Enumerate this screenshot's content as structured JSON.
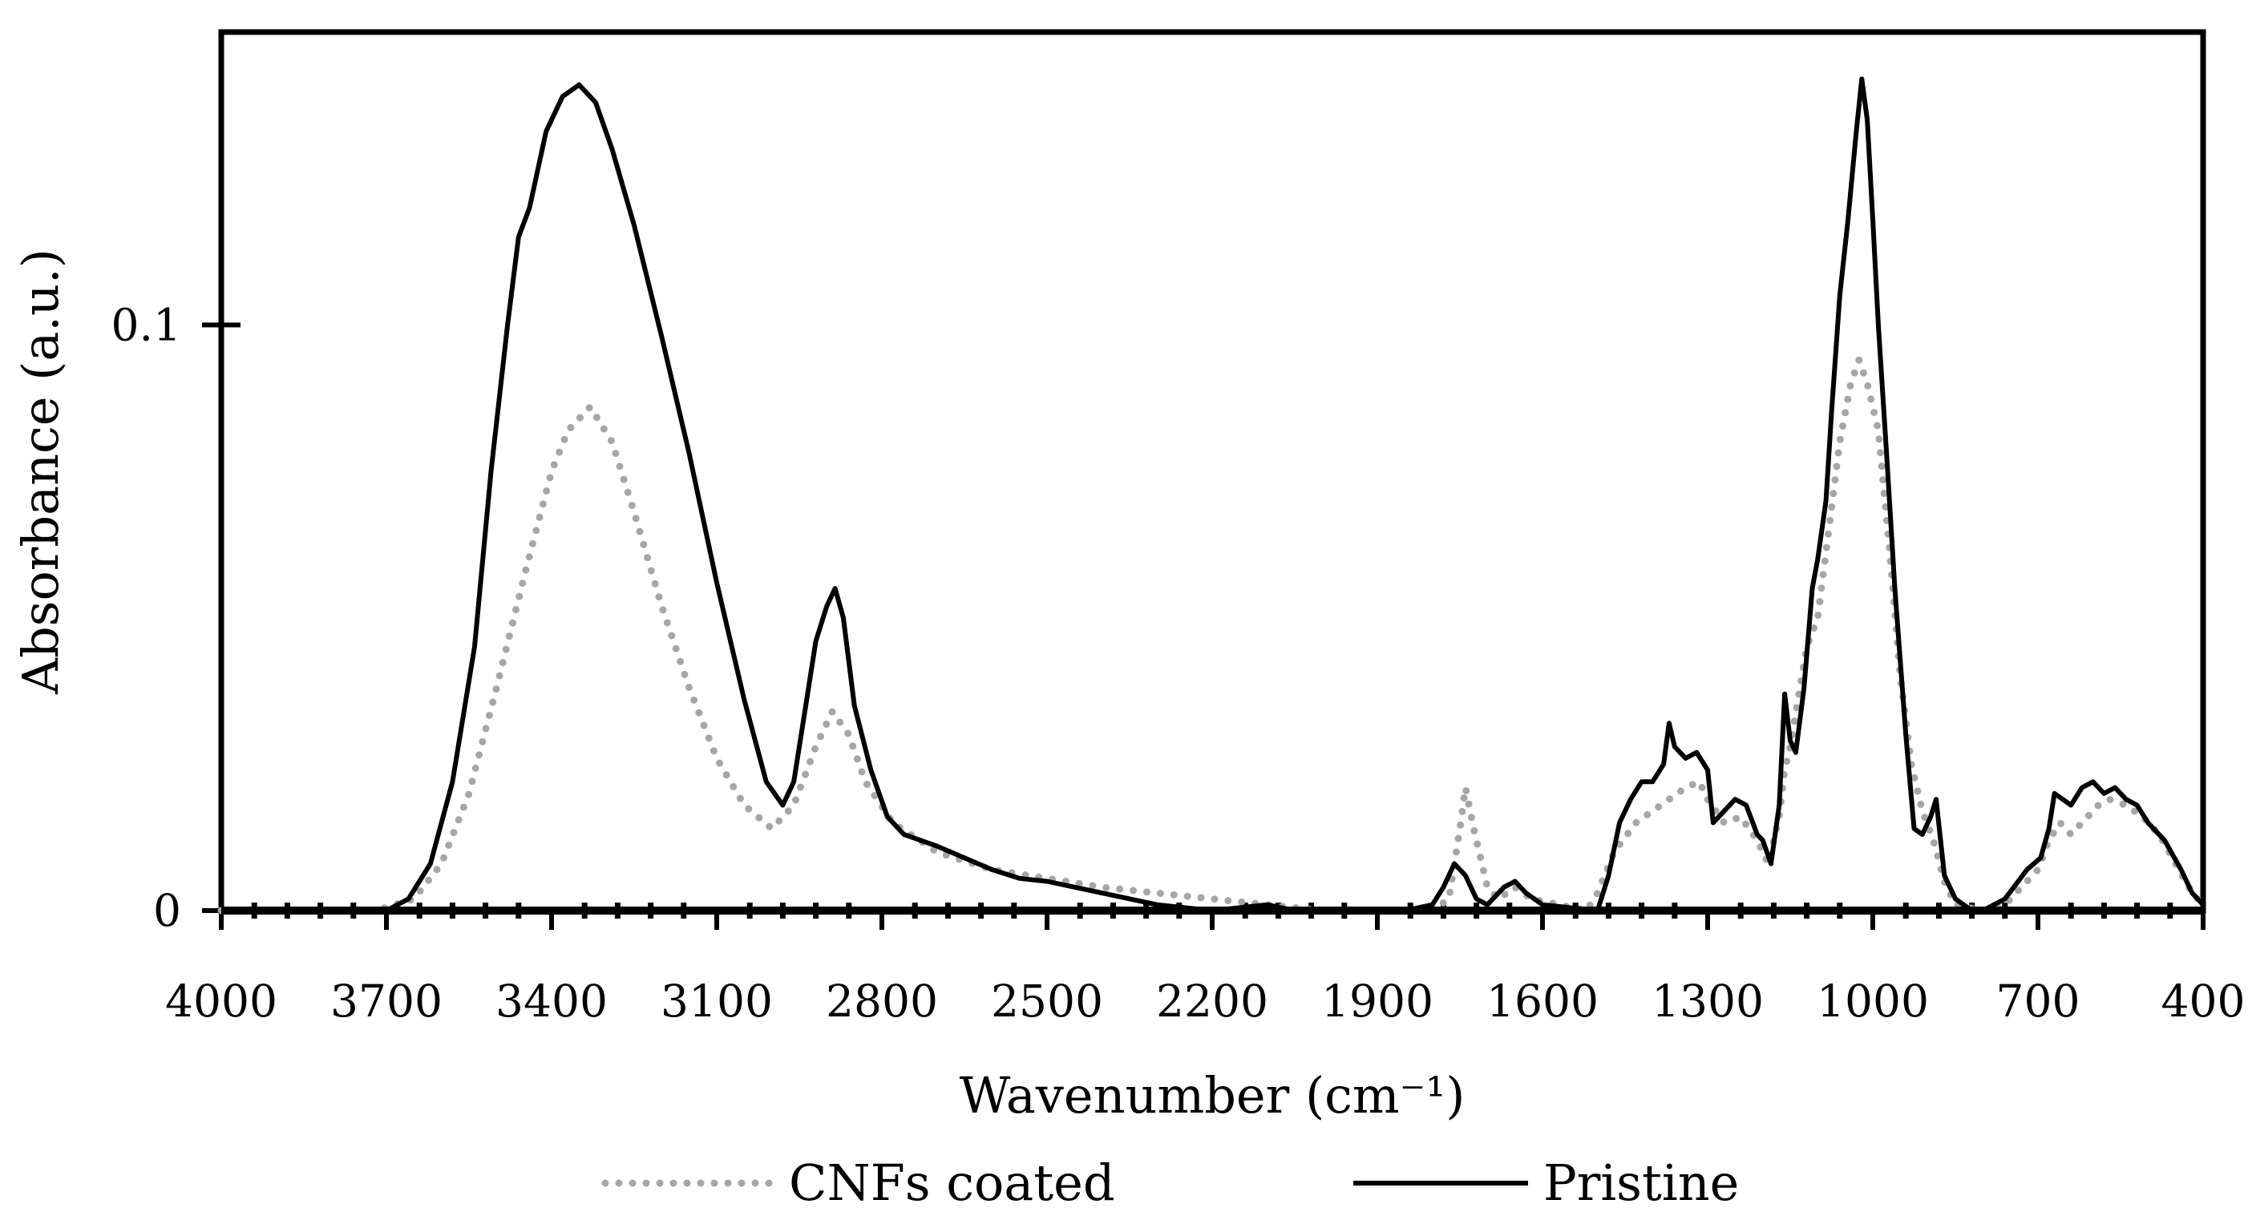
{
  "chart_data": {
    "type": "line",
    "title": "",
    "xlabel": "Wavenumber (cm⁻¹)",
    "ylabel": "Absorbance (a.u.)",
    "xlim": [
      4000,
      400
    ],
    "ylim": [
      0,
      0.15
    ],
    "x_ticks": [
      4000,
      3700,
      3400,
      3100,
      2800,
      2500,
      2200,
      1900,
      1600,
      1300,
      1000,
      700,
      400
    ],
    "x_tick_labels": [
      "4000",
      "3700",
      "3400",
      "3100",
      "2800",
      "2500",
      "2200",
      "1900",
      "1600",
      "1300",
      "1000",
      "700",
      "400"
    ],
    "y_ticks": [
      0,
      0.1
    ],
    "y_tick_labels": [
      "0",
      "0.1"
    ],
    "legend_position": "bottom",
    "series": [
      {
        "name": "CNFs coated",
        "color": "#a6a6a6",
        "style": "dotted",
        "points": [
          [
            4000,
            0
          ],
          [
            3720,
            0
          ],
          [
            3650,
            0.002
          ],
          [
            3600,
            0.008
          ],
          [
            3550,
            0.02
          ],
          [
            3500,
            0.038
          ],
          [
            3450,
            0.057
          ],
          [
            3400,
            0.075
          ],
          [
            3370,
            0.082
          ],
          [
            3330,
            0.086
          ],
          [
            3290,
            0.08
          ],
          [
            3250,
            0.068
          ],
          [
            3200,
            0.052
          ],
          [
            3150,
            0.038
          ],
          [
            3100,
            0.026
          ],
          [
            3050,
            0.018
          ],
          [
            3000,
            0.014
          ],
          [
            2960,
            0.018
          ],
          [
            2920,
            0.028
          ],
          [
            2890,
            0.034
          ],
          [
            2860,
            0.03
          ],
          [
            2830,
            0.022
          ],
          [
            2780,
            0.015
          ],
          [
            2700,
            0.01
          ],
          [
            2600,
            0.007
          ],
          [
            2500,
            0.0055
          ],
          [
            2400,
            0.004
          ],
          [
            2300,
            0.003
          ],
          [
            2200,
            0.002
          ],
          [
            2100,
            0.001
          ],
          [
            2000,
            0
          ],
          [
            1800,
            0
          ],
          [
            1770,
            0.002
          ],
          [
            1750,
            0.014
          ],
          [
            1740,
            0.021
          ],
          [
            1725,
            0.014
          ],
          [
            1700,
            0.004
          ],
          [
            1680,
            0.002
          ],
          [
            1650,
            0.004
          ],
          [
            1620,
            0.002
          ],
          [
            1520,
            0
          ],
          [
            1500,
            0.003
          ],
          [
            1470,
            0.01
          ],
          [
            1430,
            0.015
          ],
          [
            1400,
            0.017
          ],
          [
            1370,
            0.019
          ],
          [
            1340,
            0.021
          ],
          [
            1315,
            0.022
          ],
          [
            1300,
            0.019
          ],
          [
            1270,
            0.015
          ],
          [
            1240,
            0.016
          ],
          [
            1210,
            0.012
          ],
          [
            1190,
            0.008
          ],
          [
            1170,
            0.016
          ],
          [
            1160,
            0.024
          ],
          [
            1150,
            0.028
          ],
          [
            1120,
            0.045
          ],
          [
            1100,
            0.05
          ],
          [
            1080,
            0.065
          ],
          [
            1060,
            0.08
          ],
          [
            1040,
            0.09
          ],
          [
            1025,
            0.094
          ],
          [
            1010,
            0.09
          ],
          [
            990,
            0.082
          ],
          [
            970,
            0.062
          ],
          [
            950,
            0.04
          ],
          [
            930,
            0.025
          ],
          [
            910,
            0.017
          ],
          [
            890,
            0.012
          ],
          [
            870,
            0.005
          ],
          [
            850,
            0.001
          ],
          [
            800,
            0
          ],
          [
            760,
            0.001
          ],
          [
            730,
            0.004
          ],
          [
            700,
            0.007
          ],
          [
            680,
            0.012
          ],
          [
            660,
            0.015
          ],
          [
            640,
            0.013
          ],
          [
            610,
            0.016
          ],
          [
            590,
            0.018
          ],
          [
            570,
            0.019
          ],
          [
            540,
            0.018
          ],
          [
            510,
            0.016
          ],
          [
            480,
            0.013
          ],
          [
            450,
            0.008
          ],
          [
            420,
            0.003
          ],
          [
            400,
            0.001
          ]
        ]
      },
      {
        "name": "Pristine",
        "color": "#000000",
        "style": "solid",
        "points": [
          [
            4000,
            0
          ],
          [
            3700,
            0
          ],
          [
            3660,
            0.002
          ],
          [
            3620,
            0.008
          ],
          [
            3580,
            0.022
          ],
          [
            3540,
            0.045
          ],
          [
            3510,
            0.075
          ],
          [
            3480,
            0.1
          ],
          [
            3460,
            0.115
          ],
          [
            3440,
            0.12
          ],
          [
            3410,
            0.133
          ],
          [
            3380,
            0.139
          ],
          [
            3350,
            0.141
          ],
          [
            3320,
            0.138
          ],
          [
            3290,
            0.13
          ],
          [
            3250,
            0.117
          ],
          [
            3200,
            0.098
          ],
          [
            3150,
            0.078
          ],
          [
            3100,
            0.056
          ],
          [
            3050,
            0.036
          ],
          [
            3010,
            0.022
          ],
          [
            2980,
            0.018
          ],
          [
            2960,
            0.022
          ],
          [
            2940,
            0.034
          ],
          [
            2920,
            0.046
          ],
          [
            2900,
            0.052
          ],
          [
            2885,
            0.055
          ],
          [
            2870,
            0.05
          ],
          [
            2850,
            0.035
          ],
          [
            2820,
            0.024
          ],
          [
            2790,
            0.016
          ],
          [
            2760,
            0.013
          ],
          [
            2730,
            0.012
          ],
          [
            2700,
            0.011
          ],
          [
            2650,
            0.009
          ],
          [
            2600,
            0.007
          ],
          [
            2550,
            0.0055
          ],
          [
            2500,
            0.005
          ],
          [
            2400,
            0.003
          ],
          [
            2300,
            0.001
          ],
          [
            2200,
            0
          ],
          [
            2100,
            0.001
          ],
          [
            2050,
            0
          ],
          [
            1850,
            0
          ],
          [
            1800,
            0.001
          ],
          [
            1780,
            0.004
          ],
          [
            1760,
            0.008
          ],
          [
            1740,
            0.006
          ],
          [
            1720,
            0.002
          ],
          [
            1700,
            0.001
          ],
          [
            1670,
            0.004
          ],
          [
            1650,
            0.005
          ],
          [
            1630,
            0.003
          ],
          [
            1600,
            0.001
          ],
          [
            1500,
            0
          ],
          [
            1480,
            0.006
          ],
          [
            1460,
            0.015
          ],
          [
            1440,
            0.019
          ],
          [
            1420,
            0.022
          ],
          [
            1400,
            0.022
          ],
          [
            1380,
            0.025
          ],
          [
            1370,
            0.032
          ],
          [
            1360,
            0.028
          ],
          [
            1340,
            0.026
          ],
          [
            1320,
            0.027
          ],
          [
            1300,
            0.024
          ],
          [
            1290,
            0.015
          ],
          [
            1270,
            0.017
          ],
          [
            1250,
            0.019
          ],
          [
            1230,
            0.018
          ],
          [
            1210,
            0.013
          ],
          [
            1200,
            0.012
          ],
          [
            1185,
            0.008
          ],
          [
            1170,
            0.018
          ],
          [
            1160,
            0.037
          ],
          [
            1150,
            0.029
          ],
          [
            1140,
            0.027
          ],
          [
            1125,
            0.038
          ],
          [
            1110,
            0.055
          ],
          [
            1100,
            0.06
          ],
          [
            1085,
            0.07
          ],
          [
            1075,
            0.085
          ],
          [
            1060,
            0.105
          ],
          [
            1045,
            0.118
          ],
          [
            1030,
            0.133
          ],
          [
            1020,
            0.142
          ],
          [
            1010,
            0.135
          ],
          [
            1000,
            0.118
          ],
          [
            990,
            0.1
          ],
          [
            975,
            0.078
          ],
          [
            960,
            0.055
          ],
          [
            940,
            0.03
          ],
          [
            925,
            0.014
          ],
          [
            910,
            0.013
          ],
          [
            895,
            0.016
          ],
          [
            885,
            0.019
          ],
          [
            870,
            0.006
          ],
          [
            850,
            0.002
          ],
          [
            820,
            0
          ],
          [
            800,
            0
          ],
          [
            760,
            0.002
          ],
          [
            720,
            0.007
          ],
          [
            695,
            0.009
          ],
          [
            680,
            0.014
          ],
          [
            670,
            0.02
          ],
          [
            655,
            0.019
          ],
          [
            640,
            0.018
          ],
          [
            620,
            0.021
          ],
          [
            600,
            0.022
          ],
          [
            580,
            0.02
          ],
          [
            560,
            0.021
          ],
          [
            540,
            0.019
          ],
          [
            520,
            0.018
          ],
          [
            500,
            0.015
          ],
          [
            470,
            0.012
          ],
          [
            440,
            0.007
          ],
          [
            420,
            0.003
          ],
          [
            400,
            0.001
          ]
        ]
      }
    ]
  }
}
